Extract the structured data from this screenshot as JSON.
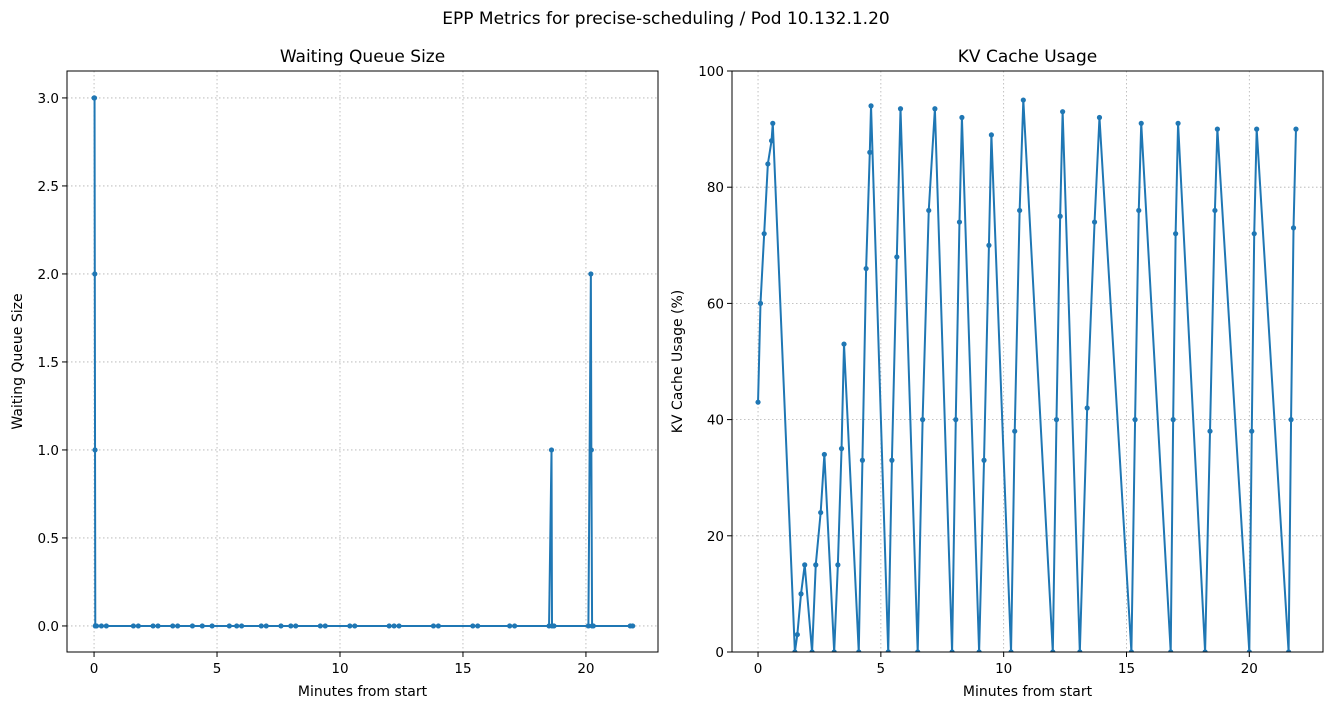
{
  "title": "EPP Metrics for precise-scheduling / Pod 10.132.1.20",
  "chart_data": [
    {
      "type": "line",
      "title": "Waiting Queue Size",
      "xlabel": "Minutes from start",
      "ylabel": "Waiting Queue Size",
      "color": "#1f77b4",
      "markers": true,
      "grid": true,
      "xlim": [
        -1.1,
        22.93
      ],
      "ylim": [
        -0.148,
        3.153
      ],
      "xticks": [
        0,
        5,
        10,
        15,
        20
      ],
      "yticks": [
        {
          "value": 0,
          "label": "0.0"
        },
        {
          "value": 0.5,
          "label": "0.5"
        },
        {
          "value": 1,
          "label": "1.0"
        },
        {
          "value": 1.5,
          "label": "1.5"
        },
        {
          "value": 2,
          "label": "2.0"
        },
        {
          "value": 2.5,
          "label": "2.5"
        },
        {
          "value": 3,
          "label": "3.0"
        }
      ],
      "x": [
        0.0,
        0.02,
        0.03,
        0.04,
        0.05,
        0.1,
        0.3,
        0.5,
        1.6,
        1.8,
        2.4,
        2.6,
        3.2,
        3.4,
        4.0,
        4.4,
        4.8,
        5.5,
        5.8,
        6.0,
        6.8,
        7.0,
        7.6,
        8.0,
        8.2,
        9.2,
        9.4,
        10.4,
        10.6,
        12.0,
        12.2,
        12.4,
        13.8,
        14.0,
        15.4,
        15.6,
        16.9,
        17.1,
        18.5,
        18.6,
        18.62,
        18.7,
        20.1,
        20.2,
        20.22,
        20.25,
        20.3,
        21.8,
        21.9
      ],
      "values": [
        3,
        3,
        2,
        1,
        0,
        0,
        0,
        0,
        0,
        0,
        0,
        0,
        0,
        0,
        0,
        0,
        0,
        0,
        0,
        0,
        0,
        0,
        0,
        0,
        0,
        0,
        0,
        0,
        0,
        0,
        0,
        0,
        0,
        0,
        0,
        0,
        0,
        0,
        0,
        1,
        0,
        0,
        0,
        2,
        1,
        0,
        0,
        0,
        0
      ]
    },
    {
      "type": "line",
      "title": "KV Cache Usage",
      "xlabel": "Minutes from start",
      "ylabel": "KV Cache Usage (%)",
      "color": "#1f77b4",
      "markers": true,
      "grid": true,
      "xlim": [
        -1.06,
        23.0
      ],
      "ylim": [
        0,
        100
      ],
      "xticks": [
        0,
        5,
        10,
        15,
        20
      ],
      "yticks": [
        0,
        20,
        40,
        60,
        80,
        100
      ],
      "x": [
        0.0,
        0.1,
        0.25,
        0.4,
        0.55,
        0.6,
        1.5,
        1.6,
        1.75,
        1.9,
        2.2,
        2.35,
        2.55,
        2.7,
        3.1,
        3.25,
        3.4,
        3.5,
        4.1,
        4.25,
        4.4,
        4.55,
        4.6,
        5.3,
        5.45,
        5.65,
        5.8,
        6.5,
        6.7,
        6.95,
        7.2,
        7.9,
        8.05,
        8.2,
        8.3,
        9.0,
        9.2,
        9.4,
        9.5,
        10.3,
        10.45,
        10.65,
        10.8,
        12.0,
        12.15,
        12.3,
        12.4,
        13.1,
        13.4,
        13.7,
        13.9,
        15.2,
        15.35,
        15.5,
        15.6,
        16.8,
        16.9,
        17.0,
        17.1,
        18.2,
        18.4,
        18.6,
        18.7,
        20.0,
        20.1,
        20.2,
        20.3,
        21.6,
        21.7,
        21.8,
        21.9
      ],
      "values": [
        43,
        60,
        72,
        84,
        88,
        91,
        0,
        3,
        10,
        15,
        0,
        15,
        24,
        34,
        0,
        15,
        35,
        53,
        0,
        33,
        66,
        86,
        94,
        0,
        33,
        68,
        93.5,
        0,
        40,
        76,
        93.5,
        0,
        40,
        74,
        92,
        0,
        33,
        70,
        89,
        0,
        38,
        76,
        95,
        0,
        40,
        75,
        93,
        0,
        42,
        74,
        92,
        0,
        40,
        76,
        91,
        0,
        40,
        72,
        91,
        0,
        38,
        76,
        90,
        0,
        38,
        72,
        90,
        0,
        40,
        73,
        90
      ]
    }
  ]
}
